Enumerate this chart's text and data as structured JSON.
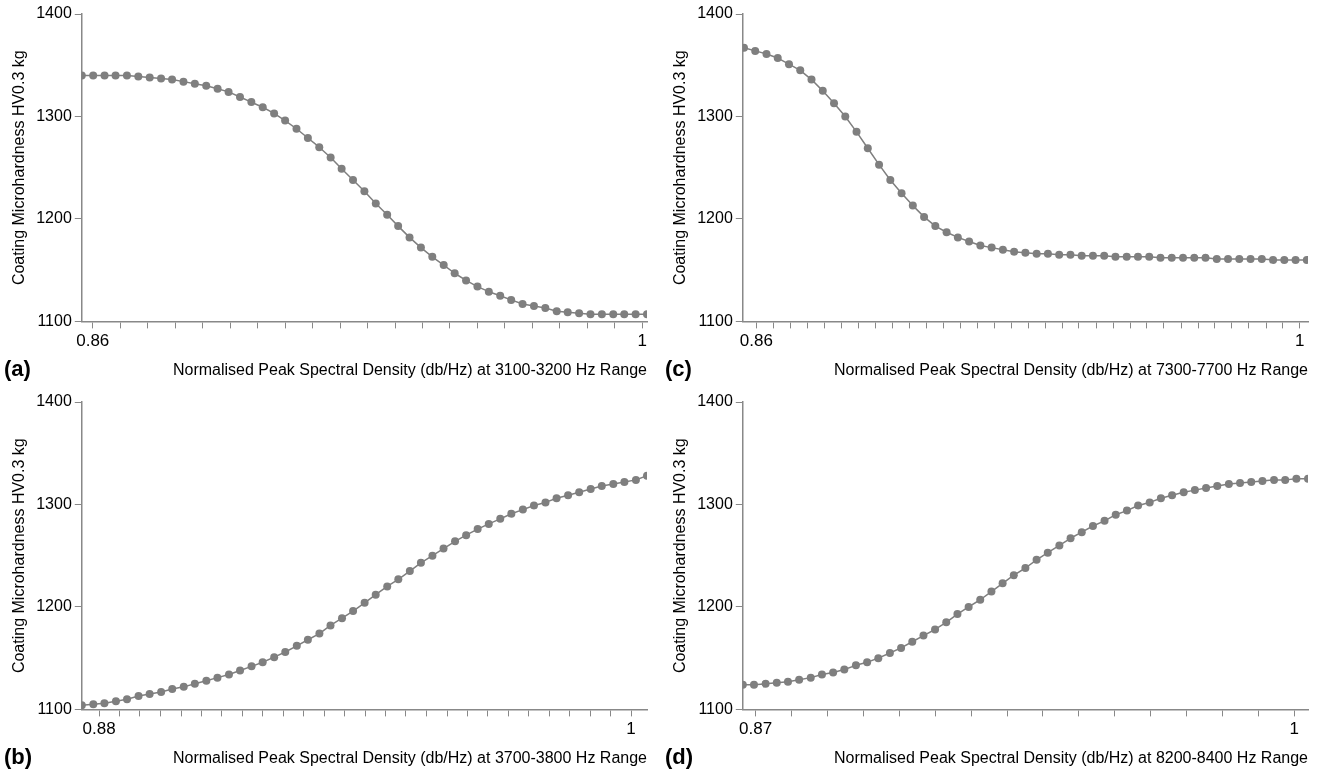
{
  "chart_data": [
    {
      "type": "line",
      "ylabel": "Coating Microhardness HV0.3 kg",
      "xlabel": "Normalised Peak Spectral Density (db/Hz) at 3100-3200 Hz Range",
      "annotations": [
        "(a)"
      ],
      "marker": "circle",
      "line_style": "solid",
      "grid": false,
      "legend": false,
      "xlim": [
        0.8572,
        1.0012
      ],
      "ylim": [
        1100,
        1400
      ],
      "yticks": [
        1100,
        1200,
        1300,
        1400
      ],
      "xticks": [
        0.86,
        {
          "value": 0.867,
          "label": null
        },
        {
          "value": 0.874,
          "label": null
        },
        {
          "value": 0.881,
          "label": null
        },
        {
          "value": 0.888,
          "label": null
        },
        {
          "value": 0.895,
          "label": null
        },
        {
          "value": 0.902,
          "label": null
        },
        {
          "value": 0.909,
          "label": null
        },
        {
          "value": 0.916,
          "label": null
        },
        {
          "value": 0.923,
          "label": null
        },
        {
          "value": 0.93,
          "label": null
        },
        {
          "value": 0.937,
          "label": null
        },
        {
          "value": 0.944,
          "label": null
        },
        {
          "value": 0.951,
          "label": null
        },
        {
          "value": 0.958,
          "label": null
        },
        {
          "value": 0.965,
          "label": null
        },
        {
          "value": 0.972,
          "label": null
        },
        {
          "value": 0.979,
          "label": null
        },
        {
          "value": 0.986,
          "label": null
        },
        {
          "value": 0.993,
          "label": null
        },
        1
      ],
      "x": [
        0.8572,
        0.8601,
        0.863,
        0.8658,
        0.8687,
        0.8716,
        0.8745,
        0.8774,
        0.8802,
        0.8831,
        0.886,
        0.8889,
        0.8918,
        0.8946,
        0.8975,
        0.9004,
        0.9033,
        0.9062,
        0.909,
        0.9119,
        0.9148,
        0.9177,
        0.9206,
        0.9234,
        0.9263,
        0.9292,
        0.9321,
        0.935,
        0.9378,
        0.9407,
        0.9436,
        0.9465,
        0.9494,
        0.9522,
        0.9551,
        0.958,
        0.9609,
        0.9638,
        0.9666,
        0.9695,
        0.9724,
        0.9753,
        0.9782,
        0.981,
        0.9839,
        0.9868,
        0.9897,
        0.9926,
        0.9954,
        0.9983,
        1.0012
      ],
      "series": [
        {
          "color": "#7f7f7f",
          "values": [
            1340,
            1340,
            1340,
            1340,
            1340,
            1339,
            1338,
            1337,
            1336,
            1334,
            1332,
            1330,
            1327,
            1324,
            1319,
            1314,
            1309,
            1303,
            1296,
            1288,
            1279,
            1270,
            1260,
            1249,
            1238,
            1227,
            1215,
            1204,
            1193,
            1182,
            1172,
            1163,
            1155,
            1147,
            1140,
            1134,
            1129,
            1125,
            1121,
            1117,
            1115,
            1113,
            1110,
            1109,
            1108,
            1107,
            1107,
            1107,
            1107,
            1107,
            1107
          ]
        }
      ]
    },
    {
      "type": "line",
      "ylabel": "Coating Microhardness HV0.3 kg",
      "xlabel": "Normalised Peak Spectral Density (db/Hz) at 7300-7700 Hz Range",
      "annotations": [
        "(c)"
      ],
      "marker": "circle",
      "line_style": "solid",
      "grid": false,
      "legend": false,
      "xlim": [
        0.8565,
        1.0021
      ],
      "ylim": [
        1100,
        1400
      ],
      "yticks": [
        1100,
        1200,
        1300,
        1400
      ],
      "xticks": [
        0.86,
        {
          "value": 0.8644,
          "label": null
        },
        {
          "value": 0.8688,
          "label": null
        },
        {
          "value": 0.8731,
          "label": null
        },
        {
          "value": 0.8775,
          "label": null
        },
        {
          "value": 0.8819,
          "label": null
        },
        {
          "value": 0.8863,
          "label": null
        },
        {
          "value": 0.8906,
          "label": null
        },
        {
          "value": 0.895,
          "label": null
        },
        {
          "value": 0.8994,
          "label": null
        },
        {
          "value": 0.9038,
          "label": null
        },
        {
          "value": 0.9081,
          "label": null
        },
        {
          "value": 0.9125,
          "label": null
        },
        {
          "value": 0.9169,
          "label": null
        },
        {
          "value": 0.9213,
          "label": null
        },
        {
          "value": 0.9256,
          "label": null
        },
        {
          "value": 0.93,
          "label": null
        },
        {
          "value": 0.9344,
          "label": null
        },
        {
          "value": 0.9388,
          "label": null
        },
        {
          "value": 0.9431,
          "label": null
        },
        {
          "value": 0.9475,
          "label": null
        },
        {
          "value": 0.9519,
          "label": null
        },
        {
          "value": 0.9563,
          "label": null
        },
        {
          "value": 0.9606,
          "label": null
        },
        {
          "value": 0.965,
          "label": null
        },
        {
          "value": 0.9694,
          "label": null
        },
        {
          "value": 0.9738,
          "label": null
        },
        {
          "value": 0.9781,
          "label": null
        },
        {
          "value": 0.9825,
          "label": null
        },
        {
          "value": 0.9869,
          "label": null
        },
        {
          "value": 0.9913,
          "label": null
        },
        {
          "value": 0.9956,
          "label": null
        },
        1
      ],
      "x": [
        0.8568,
        0.8597,
        0.8626,
        0.8655,
        0.8684,
        0.8713,
        0.8742,
        0.8771,
        0.88,
        0.8829,
        0.8858,
        0.8887,
        0.8916,
        0.8945,
        0.8974,
        0.9003,
        0.9032,
        0.9061,
        0.909,
        0.9119,
        0.9148,
        0.9177,
        0.9206,
        0.9235,
        0.9264,
        0.9293,
        0.9322,
        0.9351,
        0.938,
        0.9409,
        0.9438,
        0.9467,
        0.9496,
        0.9525,
        0.9554,
        0.9583,
        0.9612,
        0.9641,
        0.967,
        0.9699,
        0.9728,
        0.9757,
        0.9786,
        0.9815,
        0.9844,
        0.9873,
        0.9902,
        0.9931,
        0.996,
        0.9989,
        1.0018
      ],
      "series": [
        {
          "color": "#7f7f7f",
          "values": [
            1367,
            1364,
            1361,
            1357,
            1351,
            1345,
            1336,
            1325,
            1313,
            1300,
            1285,
            1269,
            1253,
            1238,
            1225,
            1213,
            1202,
            1193,
            1187,
            1182,
            1178,
            1174,
            1172,
            1170,
            1168,
            1167,
            1166,
            1166,
            1165,
            1165,
            1164,
            1164,
            1164,
            1163,
            1163,
            1163,
            1163,
            1162,
            1162,
            1162,
            1162,
            1162,
            1161,
            1161,
            1161,
            1161,
            1161,
            1160,
            1160,
            1160,
            1160
          ]
        }
      ]
    },
    {
      "type": "line",
      "ylabel": "Coating Microhardness HV0.3 kg",
      "xlabel": "Normalised Peak Spectral Density (db/Hz) at 3700-3800 Hz Range",
      "annotations": [
        "(b)"
      ],
      "marker": "circle",
      "line_style": "solid",
      "grid": false,
      "legend": false,
      "xlim": [
        0.8761,
        1.0036
      ],
      "ylim": [
        1100,
        1400
      ],
      "yticks": [
        1100,
        1200,
        1300,
        1400
      ],
      "xticks": [
        0.88,
        {
          "value": 0.8846,
          "label": null
        },
        {
          "value": 0.8892,
          "label": null
        },
        {
          "value": 0.8938,
          "label": null
        },
        {
          "value": 0.8985,
          "label": null
        },
        {
          "value": 0.9031,
          "label": null
        },
        {
          "value": 0.9077,
          "label": null
        },
        {
          "value": 0.9123,
          "label": null
        },
        {
          "value": 0.9169,
          "label": null
        },
        {
          "value": 0.9215,
          "label": null
        },
        {
          "value": 0.9262,
          "label": null
        },
        {
          "value": 0.9308,
          "label": null
        },
        {
          "value": 0.9354,
          "label": null
        },
        {
          "value": 0.94,
          "label": null
        },
        {
          "value": 0.9446,
          "label": null
        },
        {
          "value": 0.9492,
          "label": null
        },
        {
          "value": 0.9538,
          "label": null
        },
        {
          "value": 0.9585,
          "label": null
        },
        {
          "value": 0.9631,
          "label": null
        },
        {
          "value": 0.9677,
          "label": null
        },
        {
          "value": 0.9723,
          "label": null
        },
        {
          "value": 0.9769,
          "label": null
        },
        {
          "value": 0.9815,
          "label": null
        },
        {
          "value": 0.9862,
          "label": null
        },
        {
          "value": 0.9908,
          "label": null
        },
        {
          "value": 0.9954,
          "label": null
        },
        1
      ],
      "x": [
        0.8761,
        0.8787,
        0.8812,
        0.8838,
        0.8863,
        0.8889,
        0.8914,
        0.894,
        0.8965,
        0.8991,
        0.9016,
        0.9042,
        0.9067,
        0.9093,
        0.9118,
        0.9144,
        0.9169,
        0.9195,
        0.922,
        0.9246,
        0.9271,
        0.9297,
        0.9322,
        0.9348,
        0.9373,
        0.9399,
        0.9424,
        0.945,
        0.9475,
        0.9501,
        0.9526,
        0.9552,
        0.9577,
        0.9603,
        0.9628,
        0.9654,
        0.9679,
        0.9705,
        0.973,
        0.9756,
        0.9781,
        0.9807,
        0.9832,
        0.9858,
        0.9883,
        0.9909,
        0.9934,
        0.996,
        0.9985,
        1.0011,
        1.0036
      ],
      "series": [
        {
          "color": "#7f7f7f",
          "values": [
            1104,
            1105,
            1106,
            1108,
            1110,
            1113,
            1115,
            1117,
            1120,
            1122,
            1125,
            1128,
            1131,
            1134,
            1138,
            1142,
            1146,
            1151,
            1156,
            1162,
            1168,
            1174,
            1182,
            1189,
            1196,
            1204,
            1212,
            1220,
            1227,
            1235,
            1243,
            1250,
            1257,
            1264,
            1270,
            1276,
            1281,
            1286,
            1291,
            1295,
            1299,
            1302,
            1306,
            1309,
            1312,
            1315,
            1318,
            1320,
            1322,
            1324,
            1328
          ]
        }
      ]
    },
    {
      "type": "line",
      "ylabel": "Coating Microhardness HV0.3 kg",
      "xlabel": "Normalised Peak Spectral Density (db/Hz) at 8200-8400 Hz Range",
      "annotations": [
        "(d)"
      ],
      "marker": "circle",
      "line_style": "solid",
      "grid": false,
      "legend": false,
      "xlim": [
        0.8669,
        1.0033
      ],
      "ylim": [
        1100,
        1400
      ],
      "yticks": [
        1100,
        1200,
        1300,
        1400
      ],
      "xticks": [
        0.87,
        {
          "value": 0.8787,
          "label": null
        },
        {
          "value": 0.8873,
          "label": null
        },
        {
          "value": 0.896,
          "label": null
        },
        {
          "value": 0.9047,
          "label": null
        },
        {
          "value": 0.9133,
          "label": null
        },
        {
          "value": 0.922,
          "label": null
        },
        {
          "value": 0.9307,
          "label": null
        },
        {
          "value": 0.9393,
          "label": null
        },
        {
          "value": 0.948,
          "label": null
        },
        {
          "value": 0.9567,
          "label": null
        },
        {
          "value": 0.9653,
          "label": null
        },
        {
          "value": 0.974,
          "label": null
        },
        {
          "value": 0.9827,
          "label": null
        },
        {
          "value": 0.9913,
          "label": null
        },
        1
      ],
      "x": [
        0.8669,
        0.8696,
        0.8724,
        0.8751,
        0.8778,
        0.8805,
        0.8833,
        0.886,
        0.8887,
        0.8914,
        0.8942,
        0.8969,
        0.8996,
        0.9024,
        0.9051,
        0.9078,
        0.9105,
        0.9133,
        0.916,
        0.9187,
        0.9214,
        0.9242,
        0.9269,
        0.9296,
        0.9323,
        0.9351,
        0.9378,
        0.9405,
        0.9433,
        0.946,
        0.9487,
        0.9514,
        0.9542,
        0.9569,
        0.9596,
        0.9623,
        0.9651,
        0.9678,
        0.9705,
        0.9733,
        0.976,
        0.9787,
        0.9814,
        0.9842,
        0.9869,
        0.9896,
        0.9923,
        0.9951,
        0.9978,
        1.0005,
        1.0033
      ],
      "series": [
        {
          "color": "#7f7f7f",
          "values": [
            1124,
            1124,
            1125,
            1126,
            1127,
            1129,
            1131,
            1134,
            1136,
            1139,
            1143,
            1146,
            1150,
            1155,
            1160,
            1166,
            1172,
            1178,
            1185,
            1193,
            1200,
            1207,
            1215,
            1223,
            1231,
            1238,
            1246,
            1253,
            1260,
            1267,
            1273,
            1279,
            1284,
            1290,
            1294,
            1299,
            1302,
            1306,
            1309,
            1312,
            1314,
            1316,
            1318,
            1320,
            1321,
            1322,
            1323,
            1324,
            1324,
            1325,
            1325
          ]
        }
      ]
    }
  ]
}
